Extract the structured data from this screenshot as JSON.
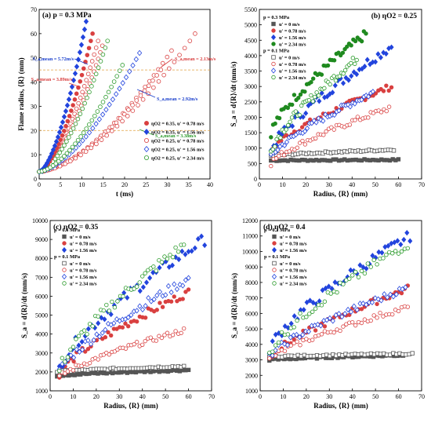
{
  "chart_data": [
    {
      "type": "scatter",
      "title": "(a) p = 0.3 MPa",
      "xlabel": "t (ms)",
      "ylabel": "Flame radius, ⟨R⟩ (mm)",
      "xlim": [
        0,
        40
      ],
      "ylim": [
        0,
        70
      ],
      "xticks": [
        "0",
        "5",
        "10",
        "15",
        "20",
        "25",
        "30",
        "35",
        "40"
      ],
      "yticks": [
        "0",
        "10",
        "20",
        "30",
        "40",
        "50",
        "60",
        "70"
      ],
      "grid": false,
      "legend_position": "lower-right",
      "dashed_lines_y": [
        45,
        20
      ],
      "series": [
        {
          "name": "ηO2 = 0.35, u' = 0.78 m/s",
          "color": "#d94040",
          "marker": "circle",
          "filled": true,
          "t_end": 12.5,
          "r_end": 60
        },
        {
          "name": "ηO2 = 0.35, u' = 1.56 m/s",
          "color": "#2244dd",
          "marker": "diamond",
          "filled": true,
          "t_end": 11.0,
          "r_end": 65
        },
        {
          "name": "ηO2 = 0.25, u' = 0.78 m/s",
          "color": "#d94040",
          "marker": "circle",
          "filled": false,
          "t_end": 36.5,
          "r_end": 60
        },
        {
          "name": "ηO2 = 0.25, u' = 1.56 m/s",
          "color": "#2244dd",
          "marker": "diamond",
          "filled": false,
          "t_end": 23.5,
          "r_end": 52
        },
        {
          "name": "ηO2 = 0.25, u' = 2.34 m/s",
          "color": "#2a9a2a",
          "marker": "circle",
          "filled": false,
          "t_end": 19.5,
          "r_end": 47
        }
      ],
      "extra_curves": [
        {
          "color": "#d94040",
          "marker": "circle",
          "filled": false,
          "t_end": 13.8,
          "r_end": 57
        },
        {
          "color": "#d94040",
          "marker": "circle",
          "filled": false,
          "t_end": 14.8,
          "r_end": 55
        },
        {
          "color": "#2a9a2a",
          "marker": "circle",
          "filled": false,
          "t_end": 16.0,
          "r_end": 57
        },
        {
          "color": "#d94040",
          "marker": "circle",
          "filled": false,
          "t_end": 31.0,
          "r_end": 53
        },
        {
          "color": "#d94040",
          "marker": "circle",
          "filled": false,
          "t_end": 28.5,
          "r_end": 45
        }
      ],
      "annotations": [
        {
          "text": "S_a,mean = 5.72m/s",
          "color": "#1a3fcc"
        },
        {
          "text": "S_a,mean = 3.89m/s",
          "color": "#d94040"
        },
        {
          "text": "S_a,mean = 2.13m/s",
          "color": "#d94040"
        },
        {
          "text": "S_a,mean = 2.92m/s",
          "color": "#1a3fcc"
        },
        {
          "text": "S_a,mean = 3.38m/s",
          "color": "#2a9a2a"
        }
      ]
    },
    {
      "type": "scatter",
      "title": "(b) ηO2 = 0.25",
      "xlabel": "Radius, ⟨R⟩ (mm)",
      "ylabel": "S_a = d⟨R⟩/dt (mm/s)",
      "xlim": [
        0,
        70
      ],
      "ylim": [
        0,
        5500
      ],
      "xticks": [
        "0",
        "10",
        "20",
        "30",
        "40",
        "50",
        "60",
        "70"
      ],
      "yticks": [
        "0",
        "500",
        "1000",
        "1500",
        "2000",
        "2500",
        "3000",
        "3500",
        "4000",
        "4500",
        "5000",
        "5500"
      ],
      "grid": false,
      "legend_position": "top-left",
      "legend_groups": [
        {
          "title": "p = 0.3 MPa",
          "entries": [
            "u' = 0 m/s",
            "u' = 0.78 m/s",
            "u' = 1.56 m/s",
            "u' = 2.34 m/s"
          ],
          "filled": true
        },
        {
          "title": "p = 0.1 MPa",
          "entries": [
            "u' = 0 m/s",
            "u' = 0.78 m/s",
            "u' = 1.56 m/s",
            "u' = 2.34 m/s"
          ],
          "filled": false
        }
      ],
      "series": [
        {
          "name": "p = 0.3 MPa, u' = 0 m/s",
          "color": "#555555",
          "marker": "square",
          "filled": true,
          "x": [
            5,
            60
          ],
          "y": [
            600,
            620
          ]
        },
        {
          "name": "p = 0.3 MPa, u' = 0.78 m/s",
          "color": "#d94040",
          "marker": "circle",
          "filled": true,
          "x": [
            6,
            57
          ],
          "y": [
            1000,
            3000
          ]
        },
        {
          "name": "p = 0.3 MPa, u' = 1.56 m/s",
          "color": "#2244dd",
          "marker": "diamond",
          "filled": true,
          "x": [
            5,
            57
          ],
          "y": [
            900,
            4300
          ]
        },
        {
          "name": "p = 0.3 MPa, u' = 2.34 m/s",
          "color": "#1f8a1f",
          "marker": "circle",
          "filled": true,
          "x": [
            5,
            46
          ],
          "y": [
            1500,
            4700
          ]
        },
        {
          "name": "p = 0.1 MPa, u' = 0 m/s",
          "color": "#555555",
          "marker": "square",
          "filled": false,
          "x": [
            5,
            58
          ],
          "y": [
            750,
            950
          ]
        },
        {
          "name": "p = 0.1 MPa, u' = 0.78 m/s",
          "color": "#d94040",
          "marker": "circle",
          "filled": false,
          "x": [
            5,
            56
          ],
          "y": [
            500,
            2300
          ]
        },
        {
          "name": "p = 0.1 MPa, u' = 1.56 m/s",
          "color": "#2244dd",
          "marker": "diamond",
          "filled": false,
          "x": [
            5,
            49
          ],
          "y": [
            700,
            2800
          ]
        },
        {
          "name": "p = 0.1 MPa, u' = 2.34 m/s",
          "color": "#2a9a2a",
          "marker": "circle",
          "filled": false,
          "x": [
            5,
            42
          ],
          "y": [
            900,
            3900
          ]
        }
      ]
    },
    {
      "type": "scatter",
      "title": "(c) ηO2 = 0.35",
      "xlabel": "Radius, ⟨R⟩ (mm)",
      "ylabel": "S_a = d⟨R⟩/dt (mm/s)",
      "xlim": [
        0,
        70
      ],
      "ylim": [
        1000,
        10000
      ],
      "xticks": [
        "0",
        "10",
        "20",
        "30",
        "40",
        "50",
        "60",
        "70"
      ],
      "yticks": [
        "1000",
        "2000",
        "3000",
        "4000",
        "5000",
        "6000",
        "7000",
        "8000",
        "9000",
        "10000"
      ],
      "grid": false,
      "legend_position": "top-left",
      "legend_groups": [
        {
          "title": "p = 0.3 MPa",
          "entries": [
            "u' = 0 m/s",
            "u' = 0.78 m/s",
            "u' = 1.56 m/s"
          ],
          "filled": true
        },
        {
          "title": "p = 0.1 MPa",
          "entries": [
            "u' = 0 m/s",
            "u' = 0.78 m/s",
            "u' = 1.56 m/s",
            "u' = 2.34 m/s"
          ],
          "filled": false
        }
      ],
      "series": [
        {
          "name": "p = 0.3 MPa, u' = 0 m/s",
          "color": "#555555",
          "marker": "square",
          "filled": true,
          "x": [
            3,
            60
          ],
          "y": [
            1800,
            2100
          ]
        },
        {
          "name": "p = 0.3 MPa, u' = 0.78 m/s",
          "color": "#d94040",
          "marker": "circle",
          "filled": true,
          "x": [
            4,
            60
          ],
          "y": [
            1900,
            6200
          ]
        },
        {
          "name": "p = 0.3 MPa, u' = 1.56 m/s",
          "color": "#2244dd",
          "marker": "diamond",
          "filled": true,
          "x": [
            4,
            67
          ],
          "y": [
            2200,
            9000
          ]
        },
        {
          "name": "p = 0.1 MPa, u' = 0 m/s",
          "color": "#555555",
          "marker": "square",
          "filled": false,
          "x": [
            3,
            58
          ],
          "y": [
            2000,
            2300
          ]
        },
        {
          "name": "p = 0.1 MPa, u' = 0.78 m/s",
          "color": "#d94040",
          "marker": "circle",
          "filled": false,
          "x": [
            4,
            58
          ],
          "y": [
            1700,
            4200
          ]
        },
        {
          "name": "p = 0.1 MPa, u' = 1.56 m/s",
          "color": "#2244dd",
          "marker": "diamond",
          "filled": false,
          "x": [
            4,
            60
          ],
          "y": [
            2000,
            6900
          ]
        },
        {
          "name": "p = 0.1 MPa, u' = 2.34 m/s",
          "color": "#2a9a2a",
          "marker": "circle",
          "filled": false,
          "x": [
            4,
            58
          ],
          "y": [
            2100,
            8700
          ]
        }
      ]
    },
    {
      "type": "scatter",
      "title": "(d) ηO2 = 0.4",
      "xlabel": "Radius, ⟨R⟩ (mm)",
      "ylabel": "S_a = d⟨R⟩/dt (mm/s)",
      "xlim": [
        0,
        70
      ],
      "ylim": [
        1000,
        12000
      ],
      "xticks": [
        "0",
        "10",
        "20",
        "30",
        "40",
        "50",
        "60",
        "70"
      ],
      "yticks": [
        "1000",
        "2000",
        "3000",
        "4000",
        "5000",
        "6000",
        "7000",
        "8000",
        "9000",
        "10000",
        "11000",
        "12000"
      ],
      "grid": false,
      "legend_position": "top-left",
      "legend_groups": [
        {
          "title": "p = 0.2 MPa",
          "entries": [
            "u' = 0 m/s",
            "u' = 0.78 m/s",
            "u' = 1.56 m/s"
          ],
          "filled": true
        },
        {
          "title": "p = 0.1 MPa",
          "entries": [
            "u' = 0 m/s",
            "u' = 0.78 m/s",
            "u' = 1.56 m/s",
            "u' = 2.34 m/s"
          ],
          "filled": false
        }
      ],
      "series": [
        {
          "name": "p = 0.2 MPa, u' = 0 m/s",
          "color": "#555555",
          "marker": "square",
          "filled": true,
          "x": [
            4,
            62
          ],
          "y": [
            3000,
            3300
          ]
        },
        {
          "name": "p = 0.2 MPa, u' = 0.78 m/s",
          "color": "#d94040",
          "marker": "circle",
          "filled": true,
          "x": [
            4,
            64
          ],
          "y": [
            3100,
            7600
          ]
        },
        {
          "name": "p = 0.2 MPa, u' = 1.56 m/s",
          "color": "#2244dd",
          "marker": "diamond",
          "filled": true,
          "x": [
            4,
            65
          ],
          "y": [
            3700,
            11000
          ]
        },
        {
          "name": "p = 0.1 MPa, u' = 0 m/s",
          "color": "#555555",
          "marker": "square",
          "filled": false,
          "x": [
            4,
            66
          ],
          "y": [
            3200,
            3400
          ]
        },
        {
          "name": "p = 0.1 MPa, u' = 0.78 m/s",
          "color": "#d94040",
          "marker": "circle",
          "filled": false,
          "x": [
            4,
            64
          ],
          "y": [
            3000,
            6400
          ]
        },
        {
          "name": "p = 0.1 MPa, u' = 1.56 m/s",
          "color": "#2244dd",
          "marker": "diamond",
          "filled": false,
          "x": [
            4,
            63
          ],
          "y": [
            3200,
            7600
          ]
        },
        {
          "name": "p = 0.1 MPa, u' = 2.34 m/s",
          "color": "#2a9a2a",
          "marker": "circle",
          "filled": false,
          "x": [
            4,
            64
          ],
          "y": [
            3400,
            10500
          ]
        }
      ]
    }
  ]
}
